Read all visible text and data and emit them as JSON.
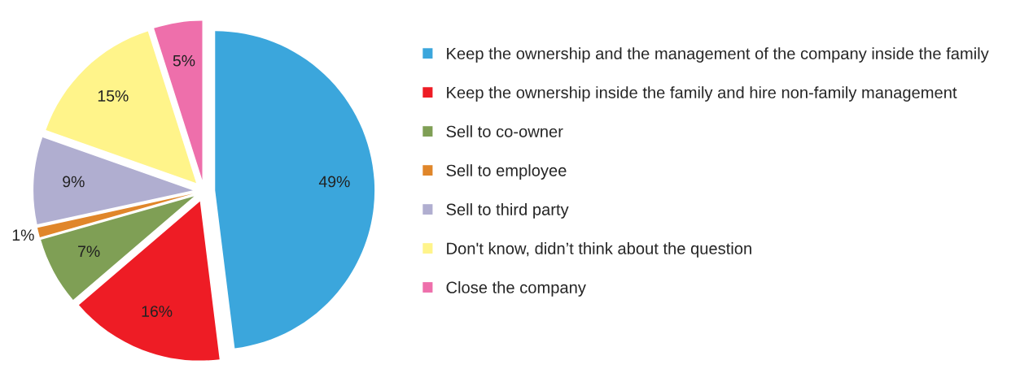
{
  "chart_data": {
    "type": "pie",
    "categories": [
      "Keep the ownership and the management of the company inside the family",
      "Keep the ownership inside the family and hire non-family management",
      "Sell to co-owner",
      "Sell to employee",
      "Sell to third party",
      "Don't know, didn’t think about the question",
      "Close the company"
    ],
    "values": [
      49,
      16,
      7,
      1,
      9,
      15,
      5
    ],
    "colors": [
      "#3ba6dc",
      "#ee1c25",
      "#7f9f55",
      "#e0862a",
      "#b0aed0",
      "#fff48a",
      "#ee6fab"
    ],
    "value_labels": [
      "49%",
      "16%",
      "7%",
      "1%",
      "9%",
      "15%",
      "5%"
    ],
    "legend": "right"
  }
}
